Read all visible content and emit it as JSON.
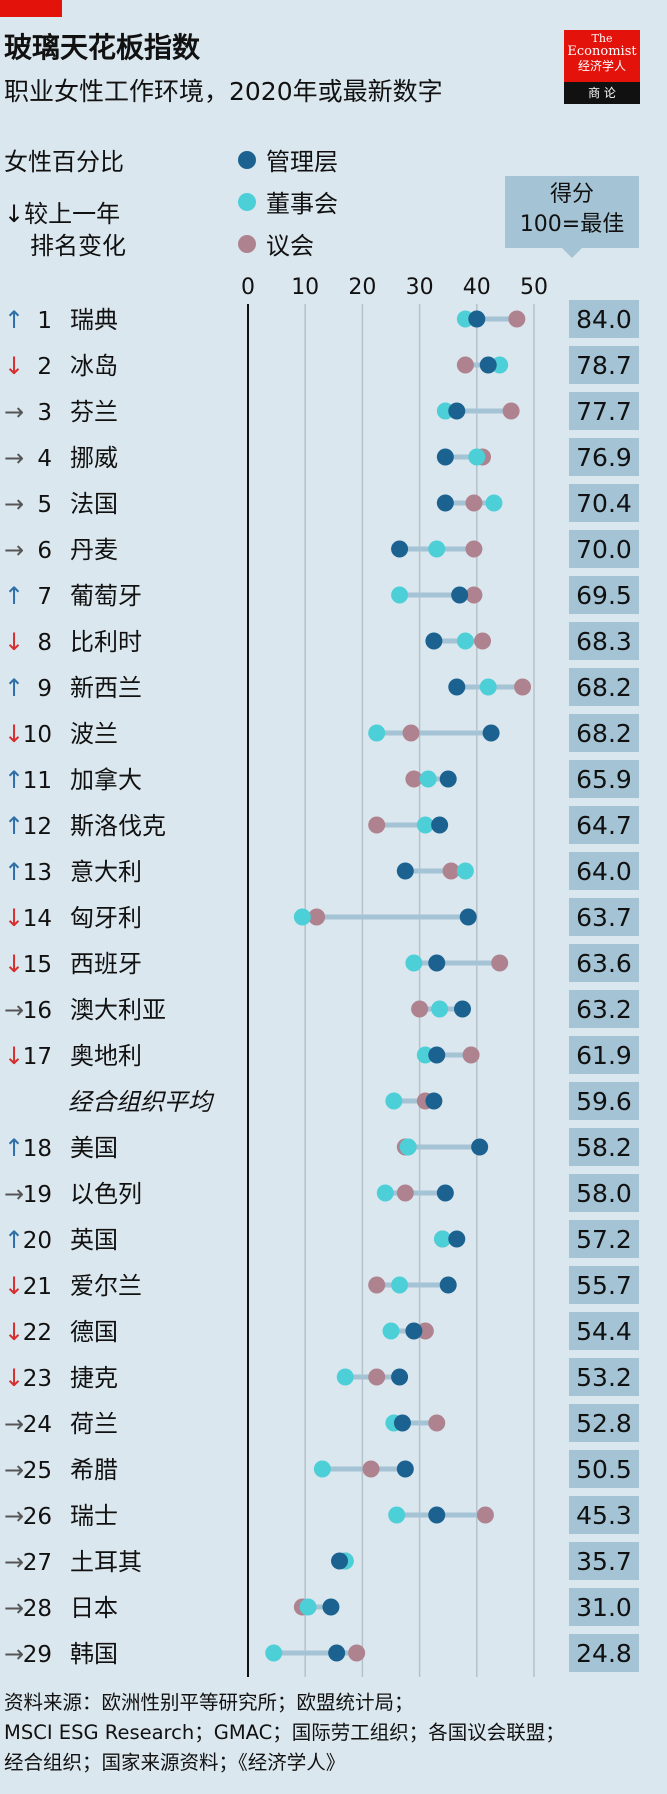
{
  "header": {
    "title": "玻璃天花板指数",
    "subtitle": "职业女性工作环境，2020年或最新数字"
  },
  "logo": {
    "line1": "The",
    "line2": "Economist",
    "line3": "经济学人",
    "line4": "商 论"
  },
  "legend": {
    "percent_label": "女性百分比",
    "rank_change_label_1": "↓较上一年",
    "rank_change_label_2": "排名变化",
    "series": [
      {
        "name": "管理层",
        "color": "#1c6291"
      },
      {
        "name": "董事会",
        "color": "#4dcfd7"
      },
      {
        "name": "议会",
        "color": "#ae838f"
      }
    ]
  },
  "score_header": {
    "line1": "得分",
    "line2": "100=最佳"
  },
  "colors": {
    "up": "#2e6fa7",
    "down": "#d62f2f",
    "same": "#555555",
    "connector": "#a4c3d4",
    "score_box": "#a4c3d4",
    "axis": "#111111",
    "grid": "#b6c2ca"
  },
  "source_lines": [
    "资料来源：欧洲性别平等研究所；欧盟统计局；",
    "MSCI ESG Research；GMAC；国际劳工组织；各国议会联盟；",
    "经合组织；国家来源资料；《经济学人》"
  ],
  "chart_data": {
    "type": "dot_plot",
    "x_ticks": [
      0,
      10,
      20,
      30,
      40,
      50
    ],
    "xlim": [
      0,
      50
    ],
    "grid": true,
    "series": [
      "管理层",
      "董事会",
      "议会"
    ],
    "rows": [
      {
        "rank": "1",
        "change": "up",
        "name": "瑞典",
        "management": 40,
        "board": 38,
        "parliament": 47,
        "score": "84.0"
      },
      {
        "rank": "2",
        "change": "down",
        "name": "冰岛",
        "management": 42,
        "board": 44,
        "parliament": 38,
        "score": "78.7"
      },
      {
        "rank": "3",
        "change": "same",
        "name": "芬兰",
        "management": 36.5,
        "board": 34.5,
        "parliament": 46,
        "score": "77.7"
      },
      {
        "rank": "4",
        "change": "same",
        "name": "挪威",
        "management": 34.5,
        "board": 40,
        "parliament": 41,
        "score": "76.9"
      },
      {
        "rank": "5",
        "change": "same",
        "name": "法国",
        "management": 34.5,
        "board": 43,
        "parliament": 39.5,
        "score": "70.4"
      },
      {
        "rank": "6",
        "change": "same",
        "name": "丹麦",
        "management": 26.5,
        "board": 33,
        "parliament": 39.5,
        "score": "70.0"
      },
      {
        "rank": "7",
        "change": "up",
        "name": "葡萄牙",
        "management": 37,
        "board": 26.5,
        "parliament": 39.5,
        "score": "69.5"
      },
      {
        "rank": "8",
        "change": "down",
        "name": "比利时",
        "management": 32.5,
        "board": 38,
        "parliament": 41,
        "score": "68.3"
      },
      {
        "rank": "9",
        "change": "up",
        "name": "新西兰",
        "management": 36.5,
        "board": 42,
        "parliament": 48,
        "score": "68.2"
      },
      {
        "rank": "10",
        "change": "down",
        "name": "波兰",
        "management": 42.5,
        "board": 22.5,
        "parliament": 28.5,
        "score": "68.2"
      },
      {
        "rank": "11",
        "change": "up",
        "name": "加拿大",
        "management": 35,
        "board": 31.5,
        "parliament": 29,
        "score": "65.9"
      },
      {
        "rank": "12",
        "change": "up",
        "name": "斯洛伐克",
        "management": 33.5,
        "board": 31,
        "parliament": 22.5,
        "score": "64.7"
      },
      {
        "rank": "13",
        "change": "up",
        "name": "意大利",
        "management": 27.5,
        "board": 38,
        "parliament": 35.5,
        "score": "64.0"
      },
      {
        "rank": "14",
        "change": "down",
        "name": "匈牙利",
        "management": 38.5,
        "board": 9.5,
        "parliament": 12,
        "score": "63.7"
      },
      {
        "rank": "15",
        "change": "down",
        "name": "西班牙",
        "management": 33,
        "board": 29,
        "parliament": 44,
        "score": "63.6"
      },
      {
        "rank": "16",
        "change": "same",
        "name": "澳大利亚",
        "management": 37.5,
        "board": 33.5,
        "parliament": 30,
        "score": "63.2"
      },
      {
        "rank": "17",
        "change": "down",
        "name": "奥地利",
        "management": 33,
        "board": 31,
        "parliament": 39,
        "score": "61.9"
      },
      {
        "rank": "",
        "change": "none",
        "name": "经合组织平均",
        "average": true,
        "management": 32.5,
        "board": 25.5,
        "parliament": 31,
        "score": "59.6"
      },
      {
        "rank": "18",
        "change": "up",
        "name": "美国",
        "management": 40.5,
        "board": 28,
        "parliament": 27.5,
        "score": "58.2"
      },
      {
        "rank": "19",
        "change": "same",
        "name": "以色列",
        "management": 34.5,
        "board": 24,
        "parliament": 27.5,
        "score": "58.0"
      },
      {
        "rank": "20",
        "change": "up",
        "name": "英国",
        "management": 36.5,
        "board": 34,
        "parliament": 34,
        "score": "57.2"
      },
      {
        "rank": "21",
        "change": "down",
        "name": "爱尔兰",
        "management": 35,
        "board": 26.5,
        "parliament": 22.5,
        "score": "55.7"
      },
      {
        "rank": "22",
        "change": "down",
        "name": "德国",
        "management": 29,
        "board": 25,
        "parliament": 31,
        "score": "54.4"
      },
      {
        "rank": "23",
        "change": "down",
        "name": "捷克",
        "management": 26.5,
        "board": 17,
        "parliament": 22.5,
        "score": "53.2"
      },
      {
        "rank": "24",
        "change": "same",
        "name": "荷兰",
        "management": 27,
        "board": 25.5,
        "parliament": 33,
        "score": "52.8"
      },
      {
        "rank": "25",
        "change": "same",
        "name": "希腊",
        "management": 27.5,
        "board": 13,
        "parliament": 21.5,
        "score": "50.5"
      },
      {
        "rank": "26",
        "change": "same",
        "name": "瑞士",
        "management": 33,
        "board": 26,
        "parliament": 41.5,
        "score": "45.3"
      },
      {
        "rank": "27",
        "change": "same",
        "name": "土耳其",
        "management": 16,
        "board": 17,
        "parliament": 17,
        "score": "35.7"
      },
      {
        "rank": "28",
        "change": "same",
        "name": "日本",
        "management": 14.5,
        "board": 10.5,
        "parliament": 9.5,
        "score": "31.0"
      },
      {
        "rank": "29",
        "change": "same",
        "name": "韩国",
        "management": 15.5,
        "board": 4.5,
        "parliament": 19,
        "score": "24.8"
      }
    ]
  }
}
